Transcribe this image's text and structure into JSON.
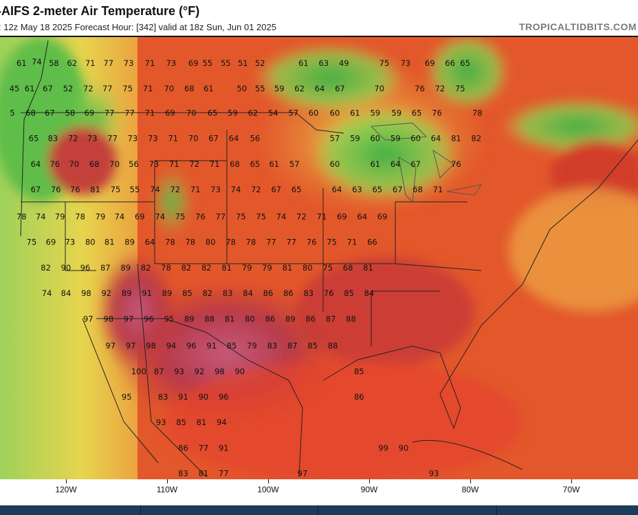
{
  "header": {
    "title": "-AIFS 2-meter Air Temperature (°F)",
    "subtitle": ": 12z May 18 2025   Forecast Hour: [342]   valid at 18z Sun, Jun 01 2025",
    "brand": "TROPICALTIDBITS.COM"
  },
  "axis": {
    "longitude_labels": [
      "120W",
      "110W",
      "100W",
      "90W",
      "80W",
      "70W"
    ]
  },
  "legend_colors": {
    "cool": "#5fc24a",
    "mild": "#e8d24a",
    "warm": "#e3532a",
    "hot": "#b42f3a",
    "very_hot": "#c9607e"
  },
  "temperatures": [
    {
      "v": "61",
      "lon": -124.4,
      "lat": 49.8
    },
    {
      "v": "74",
      "lon": -122.9,
      "lat": 49.9
    },
    {
      "v": "58",
      "lon": -121.2,
      "lat": 49.8
    },
    {
      "v": "62",
      "lon": -119.4,
      "lat": 49.8
    },
    {
      "v": "71",
      "lon": -117.6,
      "lat": 49.8
    },
    {
      "v": "77",
      "lon": -115.8,
      "lat": 49.8
    },
    {
      "v": "73",
      "lon": -113.8,
      "lat": 49.8
    },
    {
      "v": "71",
      "lon": -111.7,
      "lat": 49.8
    },
    {
      "v": "73",
      "lon": -109.6,
      "lat": 49.8
    },
    {
      "v": "69",
      "lon": -107.4,
      "lat": 49.8
    },
    {
      "v": "55",
      "lon": -106.0,
      "lat": 49.8
    },
    {
      "v": "55",
      "lon": -104.2,
      "lat": 49.8
    },
    {
      "v": "51",
      "lon": -102.5,
      "lat": 49.8
    },
    {
      "v": "52",
      "lon": -100.8,
      "lat": 49.8
    },
    {
      "v": "61",
      "lon": -96.5,
      "lat": 49.8
    },
    {
      "v": "63",
      "lon": -94.5,
      "lat": 49.8
    },
    {
      "v": "49",
      "lon": -92.5,
      "lat": 49.8
    },
    {
      "v": "75",
      "lon": -88.5,
      "lat": 49.8
    },
    {
      "v": "73",
      "lon": -86.4,
      "lat": 49.8
    },
    {
      "v": "69",
      "lon": -84.0,
      "lat": 49.8
    },
    {
      "v": "66",
      "lon": -82.0,
      "lat": 49.8
    },
    {
      "v": "65",
      "lon": -80.5,
      "lat": 49.8
    },
    {
      "v": "45",
      "lon": -125.1,
      "lat": 47.9
    },
    {
      "v": "61",
      "lon": -123.6,
      "lat": 47.9
    },
    {
      "v": "67",
      "lon": -121.8,
      "lat": 47.9
    },
    {
      "v": "52",
      "lon": -119.8,
      "lat": 47.9
    },
    {
      "v": "72",
      "lon": -117.8,
      "lat": 47.9
    },
    {
      "v": "77",
      "lon": -115.9,
      "lat": 47.9
    },
    {
      "v": "75",
      "lon": -113.9,
      "lat": 47.9
    },
    {
      "v": "71",
      "lon": -111.9,
      "lat": 47.9
    },
    {
      "v": "70",
      "lon": -109.8,
      "lat": 47.9
    },
    {
      "v": "68",
      "lon": -107.8,
      "lat": 47.9
    },
    {
      "v": "61",
      "lon": -105.9,
      "lat": 47.9
    },
    {
      "v": "50",
      "lon": -102.6,
      "lat": 47.9
    },
    {
      "v": "55",
      "lon": -100.8,
      "lat": 47.9
    },
    {
      "v": "59",
      "lon": -98.9,
      "lat": 47.9
    },
    {
      "v": "62",
      "lon": -96.9,
      "lat": 47.9
    },
    {
      "v": "64",
      "lon": -94.9,
      "lat": 47.9
    },
    {
      "v": "67",
      "lon": -92.9,
      "lat": 47.9
    },
    {
      "v": "70",
      "lon": -89.0,
      "lat": 47.9
    },
    {
      "v": "76",
      "lon": -85.0,
      "lat": 47.9
    },
    {
      "v": "72",
      "lon": -83.0,
      "lat": 47.9
    },
    {
      "v": "75",
      "lon": -81.0,
      "lat": 47.9
    },
    {
      "v": "5",
      "lon": -125.3,
      "lat": 46.1
    },
    {
      "v": "68",
      "lon": -123.5,
      "lat": 46.1
    },
    {
      "v": "67",
      "lon": -121.6,
      "lat": 46.1
    },
    {
      "v": "58",
      "lon": -119.6,
      "lat": 46.1
    },
    {
      "v": "69",
      "lon": -117.7,
      "lat": 46.1
    },
    {
      "v": "77",
      "lon": -115.7,
      "lat": 46.1
    },
    {
      "v": "77",
      "lon": -113.7,
      "lat": 46.1
    },
    {
      "v": "71",
      "lon": -111.7,
      "lat": 46.1
    },
    {
      "v": "69",
      "lon": -109.7,
      "lat": 46.1
    },
    {
      "v": "70",
      "lon": -107.6,
      "lat": 46.1
    },
    {
      "v": "65",
      "lon": -105.5,
      "lat": 46.1
    },
    {
      "v": "59",
      "lon": -103.5,
      "lat": 46.1
    },
    {
      "v": "62",
      "lon": -101.5,
      "lat": 46.1
    },
    {
      "v": "54",
      "lon": -99.5,
      "lat": 46.1
    },
    {
      "v": "57",
      "lon": -97.5,
      "lat": 46.1
    },
    {
      "v": "60",
      "lon": -95.5,
      "lat": 46.1
    },
    {
      "v": "60",
      "lon": -93.4,
      "lat": 46.1
    },
    {
      "v": "61",
      "lon": -91.4,
      "lat": 46.1
    },
    {
      "v": "59",
      "lon": -89.4,
      "lat": 46.1
    },
    {
      "v": "59",
      "lon": -87.3,
      "lat": 46.1
    },
    {
      "v": "65",
      "lon": -85.3,
      "lat": 46.1
    },
    {
      "v": "76",
      "lon": -83.3,
      "lat": 46.1
    },
    {
      "v": "78",
      "lon": -79.3,
      "lat": 46.1
    },
    {
      "v": "65",
      "lon": -123.2,
      "lat": 44.2
    },
    {
      "v": "83",
      "lon": -121.3,
      "lat": 44.2
    },
    {
      "v": "72",
      "lon": -119.3,
      "lat": 44.2
    },
    {
      "v": "73",
      "lon": -117.4,
      "lat": 44.2
    },
    {
      "v": "77",
      "lon": -115.4,
      "lat": 44.2
    },
    {
      "v": "73",
      "lon": -113.4,
      "lat": 44.2
    },
    {
      "v": "73",
      "lon": -111.4,
      "lat": 44.2
    },
    {
      "v": "71",
      "lon": -109.4,
      "lat": 44.2
    },
    {
      "v": "70",
      "lon": -107.4,
      "lat": 44.2
    },
    {
      "v": "67",
      "lon": -105.4,
      "lat": 44.2
    },
    {
      "v": "64",
      "lon": -103.4,
      "lat": 44.2
    },
    {
      "v": "56",
      "lon": -101.3,
      "lat": 44.2
    },
    {
      "v": "57",
      "lon": -93.4,
      "lat": 44.2
    },
    {
      "v": "59",
      "lon": -91.4,
      "lat": 44.2
    },
    {
      "v": "60",
      "lon": -89.4,
      "lat": 44.2
    },
    {
      "v": "59",
      "lon": -87.4,
      "lat": 44.2
    },
    {
      "v": "60",
      "lon": -85.4,
      "lat": 44.2
    },
    {
      "v": "64",
      "lon": -83.4,
      "lat": 44.2
    },
    {
      "v": "81",
      "lon": -81.4,
      "lat": 44.2
    },
    {
      "v": "82",
      "lon": -79.4,
      "lat": 44.2
    },
    {
      "v": "64",
      "lon": -123.0,
      "lat": 42.3
    },
    {
      "v": "76",
      "lon": -121.1,
      "lat": 42.3
    },
    {
      "v": "70",
      "lon": -119.2,
      "lat": 42.3
    },
    {
      "v": "68",
      "lon": -117.2,
      "lat": 42.3
    },
    {
      "v": "70",
      "lon": -115.2,
      "lat": 42.3
    },
    {
      "v": "56",
      "lon": -113.3,
      "lat": 42.3
    },
    {
      "v": "73",
      "lon": -111.3,
      "lat": 42.3
    },
    {
      "v": "71",
      "lon": -109.3,
      "lat": 42.3
    },
    {
      "v": "72",
      "lon": -107.3,
      "lat": 42.3
    },
    {
      "v": "71",
      "lon": -105.3,
      "lat": 42.3
    },
    {
      "v": "68",
      "lon": -103.3,
      "lat": 42.3
    },
    {
      "v": "65",
      "lon": -101.3,
      "lat": 42.3
    },
    {
      "v": "61",
      "lon": -99.4,
      "lat": 42.3
    },
    {
      "v": "57",
      "lon": -97.4,
      "lat": 42.3
    },
    {
      "v": "60",
      "lon": -93.4,
      "lat": 42.3
    },
    {
      "v": "61",
      "lon": -89.4,
      "lat": 42.3
    },
    {
      "v": "64",
      "lon": -87.4,
      "lat": 42.3
    },
    {
      "v": "67",
      "lon": -85.4,
      "lat": 42.3
    },
    {
      "v": "76",
      "lon": -81.4,
      "lat": 42.3
    },
    {
      "v": "67",
      "lon": -123.0,
      "lat": 40.4
    },
    {
      "v": "76",
      "lon": -121.0,
      "lat": 40.4
    },
    {
      "v": "76",
      "lon": -119.1,
      "lat": 40.4
    },
    {
      "v": "81",
      "lon": -117.1,
      "lat": 40.4
    },
    {
      "v": "75",
      "lon": -115.1,
      "lat": 40.4
    },
    {
      "v": "55",
      "lon": -113.2,
      "lat": 40.4
    },
    {
      "v": "74",
      "lon": -111.2,
      "lat": 40.4
    },
    {
      "v": "72",
      "lon": -109.2,
      "lat": 40.4
    },
    {
      "v": "71",
      "lon": -107.2,
      "lat": 40.4
    },
    {
      "v": "73",
      "lon": -105.2,
      "lat": 40.4
    },
    {
      "v": "74",
      "lon": -103.2,
      "lat": 40.4
    },
    {
      "v": "72",
      "lon": -101.2,
      "lat": 40.4
    },
    {
      "v": "67",
      "lon": -99.2,
      "lat": 40.4
    },
    {
      "v": "65",
      "lon": -97.2,
      "lat": 40.4
    },
    {
      "v": "64",
      "lon": -93.2,
      "lat": 40.4
    },
    {
      "v": "63",
      "lon": -91.2,
      "lat": 40.4
    },
    {
      "v": "65",
      "lon": -89.2,
      "lat": 40.4
    },
    {
      "v": "67",
      "lon": -87.2,
      "lat": 40.4
    },
    {
      "v": "68",
      "lon": -85.2,
      "lat": 40.4
    },
    {
      "v": "71",
      "lon": -83.2,
      "lat": 40.4
    },
    {
      "v": "78",
      "lon": -124.4,
      "lat": 38.4
    },
    {
      "v": "74",
      "lon": -122.5,
      "lat": 38.4
    },
    {
      "v": "79",
      "lon": -120.6,
      "lat": 38.4
    },
    {
      "v": "78",
      "lon": -118.6,
      "lat": 38.4
    },
    {
      "v": "79",
      "lon": -116.6,
      "lat": 38.4
    },
    {
      "v": "74",
      "lon": -114.7,
      "lat": 38.4
    },
    {
      "v": "69",
      "lon": -112.7,
      "lat": 38.4
    },
    {
      "v": "74",
      "lon": -110.7,
      "lat": 38.4
    },
    {
      "v": "75",
      "lon": -108.7,
      "lat": 38.4
    },
    {
      "v": "76",
      "lon": -106.7,
      "lat": 38.4
    },
    {
      "v": "77",
      "lon": -104.7,
      "lat": 38.4
    },
    {
      "v": "75",
      "lon": -102.7,
      "lat": 38.4
    },
    {
      "v": "75",
      "lon": -100.7,
      "lat": 38.4
    },
    {
      "v": "74",
      "lon": -98.7,
      "lat": 38.4
    },
    {
      "v": "72",
      "lon": -96.7,
      "lat": 38.4
    },
    {
      "v": "71",
      "lon": -94.7,
      "lat": 38.4
    },
    {
      "v": "69",
      "lon": -92.7,
      "lat": 38.4
    },
    {
      "v": "64",
      "lon": -90.7,
      "lat": 38.4
    },
    {
      "v": "69",
      "lon": -88.7,
      "lat": 38.4
    },
    {
      "v": "75",
      "lon": -123.4,
      "lat": 36.5
    },
    {
      "v": "69",
      "lon": -121.5,
      "lat": 36.5
    },
    {
      "v": "73",
      "lon": -119.6,
      "lat": 36.5
    },
    {
      "v": "80",
      "lon": -117.6,
      "lat": 36.5
    },
    {
      "v": "81",
      "lon": -115.7,
      "lat": 36.5
    },
    {
      "v": "89",
      "lon": -113.7,
      "lat": 36.5
    },
    {
      "v": "64",
      "lon": -111.7,
      "lat": 36.5
    },
    {
      "v": "78",
      "lon": -109.7,
      "lat": 36.5
    },
    {
      "v": "78",
      "lon": -107.7,
      "lat": 36.5
    },
    {
      "v": "80",
      "lon": -105.7,
      "lat": 36.5
    },
    {
      "v": "78",
      "lon": -103.7,
      "lat": 36.5
    },
    {
      "v": "78",
      "lon": -101.7,
      "lat": 36.5
    },
    {
      "v": "77",
      "lon": -99.7,
      "lat": 36.5
    },
    {
      "v": "77",
      "lon": -97.7,
      "lat": 36.5
    },
    {
      "v": "76",
      "lon": -95.7,
      "lat": 36.5
    },
    {
      "v": "75",
      "lon": -93.7,
      "lat": 36.5
    },
    {
      "v": "71",
      "lon": -91.7,
      "lat": 36.5
    },
    {
      "v": "66",
      "lon": -89.7,
      "lat": 36.5
    },
    {
      "v": "82",
      "lon": -122.0,
      "lat": 34.6
    },
    {
      "v": "90",
      "lon": -120.0,
      "lat": 34.6
    },
    {
      "v": "96",
      "lon": -118.1,
      "lat": 34.6
    },
    {
      "v": "87",
      "lon": -116.1,
      "lat": 34.6
    },
    {
      "v": "89",
      "lon": -114.1,
      "lat": 34.6
    },
    {
      "v": "82",
      "lon": -112.1,
      "lat": 34.6
    },
    {
      "v": "78",
      "lon": -110.1,
      "lat": 34.6
    },
    {
      "v": "82",
      "lon": -108.1,
      "lat": 34.6
    },
    {
      "v": "82",
      "lon": -106.1,
      "lat": 34.6
    },
    {
      "v": "81",
      "lon": -104.1,
      "lat": 34.6
    },
    {
      "v": "79",
      "lon": -102.1,
      "lat": 34.6
    },
    {
      "v": "79",
      "lon": -100.1,
      "lat": 34.6
    },
    {
      "v": "81",
      "lon": -98.1,
      "lat": 34.6
    },
    {
      "v": "80",
      "lon": -96.1,
      "lat": 34.6
    },
    {
      "v": "75",
      "lon": -94.1,
      "lat": 34.6
    },
    {
      "v": "68",
      "lon": -92.1,
      "lat": 34.6
    },
    {
      "v": "81",
      "lon": -90.1,
      "lat": 34.6
    },
    {
      "v": "74",
      "lon": -121.9,
      "lat": 32.7
    },
    {
      "v": "84",
      "lon": -120.0,
      "lat": 32.7
    },
    {
      "v": "98",
      "lon": -118.0,
      "lat": 32.7
    },
    {
      "v": "92",
      "lon": -116.0,
      "lat": 32.7
    },
    {
      "v": "89",
      "lon": -114.0,
      "lat": 32.7
    },
    {
      "v": "91",
      "lon": -112.0,
      "lat": 32.7
    },
    {
      "v": "89",
      "lon": -110.0,
      "lat": 32.7
    },
    {
      "v": "85",
      "lon": -108.0,
      "lat": 32.7
    },
    {
      "v": "82",
      "lon": -106.0,
      "lat": 32.7
    },
    {
      "v": "83",
      "lon": -104.0,
      "lat": 32.7
    },
    {
      "v": "84",
      "lon": -102.0,
      "lat": 32.7
    },
    {
      "v": "86",
      "lon": -100.0,
      "lat": 32.7
    },
    {
      "v": "86",
      "lon": -98.0,
      "lat": 32.7
    },
    {
      "v": "83",
      "lon": -96.0,
      "lat": 32.7
    },
    {
      "v": "76",
      "lon": -94.0,
      "lat": 32.7
    },
    {
      "v": "85",
      "lon": -92.0,
      "lat": 32.7
    },
    {
      "v": "84",
      "lon": -90.0,
      "lat": 32.7
    },
    {
      "v": "97",
      "lon": -117.8,
      "lat": 30.8
    },
    {
      "v": "98",
      "lon": -115.8,
      "lat": 30.8
    },
    {
      "v": "97",
      "lon": -113.8,
      "lat": 30.8
    },
    {
      "v": "96",
      "lon": -111.8,
      "lat": 30.8
    },
    {
      "v": "95",
      "lon": -109.8,
      "lat": 30.8
    },
    {
      "v": "89",
      "lon": -107.8,
      "lat": 30.8
    },
    {
      "v": "88",
      "lon": -105.8,
      "lat": 30.8
    },
    {
      "v": "81",
      "lon": -103.8,
      "lat": 30.8
    },
    {
      "v": "80",
      "lon": -101.8,
      "lat": 30.8
    },
    {
      "v": "86",
      "lon": -99.8,
      "lat": 30.8
    },
    {
      "v": "89",
      "lon": -97.8,
      "lat": 30.8
    },
    {
      "v": "86",
      "lon": -95.8,
      "lat": 30.8
    },
    {
      "v": "87",
      "lon": -93.8,
      "lat": 30.8
    },
    {
      "v": "88",
      "lon": -91.8,
      "lat": 30.8
    },
    {
      "v": "97",
      "lon": -115.6,
      "lat": 28.8
    },
    {
      "v": "97",
      "lon": -113.6,
      "lat": 28.8
    },
    {
      "v": "98",
      "lon": -111.6,
      "lat": 28.8
    },
    {
      "v": "94",
      "lon": -109.6,
      "lat": 28.8
    },
    {
      "v": "96",
      "lon": -107.6,
      "lat": 28.8
    },
    {
      "v": "91",
      "lon": -105.6,
      "lat": 28.8
    },
    {
      "v": "85",
      "lon": -103.6,
      "lat": 28.8
    },
    {
      "v": "79",
      "lon": -101.6,
      "lat": 28.8
    },
    {
      "v": "83",
      "lon": -99.6,
      "lat": 28.8
    },
    {
      "v": "87",
      "lon": -97.6,
      "lat": 28.8
    },
    {
      "v": "85",
      "lon": -95.6,
      "lat": 28.8
    },
    {
      "v": "88",
      "lon": -93.6,
      "lat": 28.8
    },
    {
      "v": "100",
      "lon": -112.8,
      "lat": 26.9
    },
    {
      "v": "87",
      "lon": -110.8,
      "lat": 26.9
    },
    {
      "v": "93",
      "lon": -108.8,
      "lat": 26.9
    },
    {
      "v": "92",
      "lon": -106.8,
      "lat": 26.9
    },
    {
      "v": "98",
      "lon": -104.8,
      "lat": 26.9
    },
    {
      "v": "90",
      "lon": -102.8,
      "lat": 26.9
    },
    {
      "v": "85",
      "lon": -91.0,
      "lat": 26.9
    },
    {
      "v": "95",
      "lon": -114.0,
      "lat": 25.0
    },
    {
      "v": "83",
      "lon": -110.4,
      "lat": 25.0
    },
    {
      "v": "91",
      "lon": -108.4,
      "lat": 25.0
    },
    {
      "v": "90",
      "lon": -106.4,
      "lat": 25.0
    },
    {
      "v": "96",
      "lon": -104.4,
      "lat": 25.0
    },
    {
      "v": "86",
      "lon": -91.0,
      "lat": 25.0
    },
    {
      "v": "93",
      "lon": -110.6,
      "lat": 23.1
    },
    {
      "v": "85",
      "lon": -108.6,
      "lat": 23.1
    },
    {
      "v": "81",
      "lon": -106.6,
      "lat": 23.1
    },
    {
      "v": "94",
      "lon": -104.6,
      "lat": 23.1
    },
    {
      "v": "86",
      "lon": -108.4,
      "lat": 21.2
    },
    {
      "v": "77",
      "lon": -106.4,
      "lat": 21.2
    },
    {
      "v": "91",
      "lon": -104.4,
      "lat": 21.2
    },
    {
      "v": "99",
      "lon": -88.6,
      "lat": 21.2
    },
    {
      "v": "90",
      "lon": -86.6,
      "lat": 21.2
    },
    {
      "v": "83",
      "lon": -108.4,
      "lat": 19.3
    },
    {
      "v": "81",
      "lon": -106.4,
      "lat": 19.3
    },
    {
      "v": "77",
      "lon": -104.4,
      "lat": 19.3
    },
    {
      "v": "97",
      "lon": -96.6,
      "lat": 19.3
    },
    {
      "v": "93",
      "lon": -83.6,
      "lat": 19.3
    }
  ]
}
